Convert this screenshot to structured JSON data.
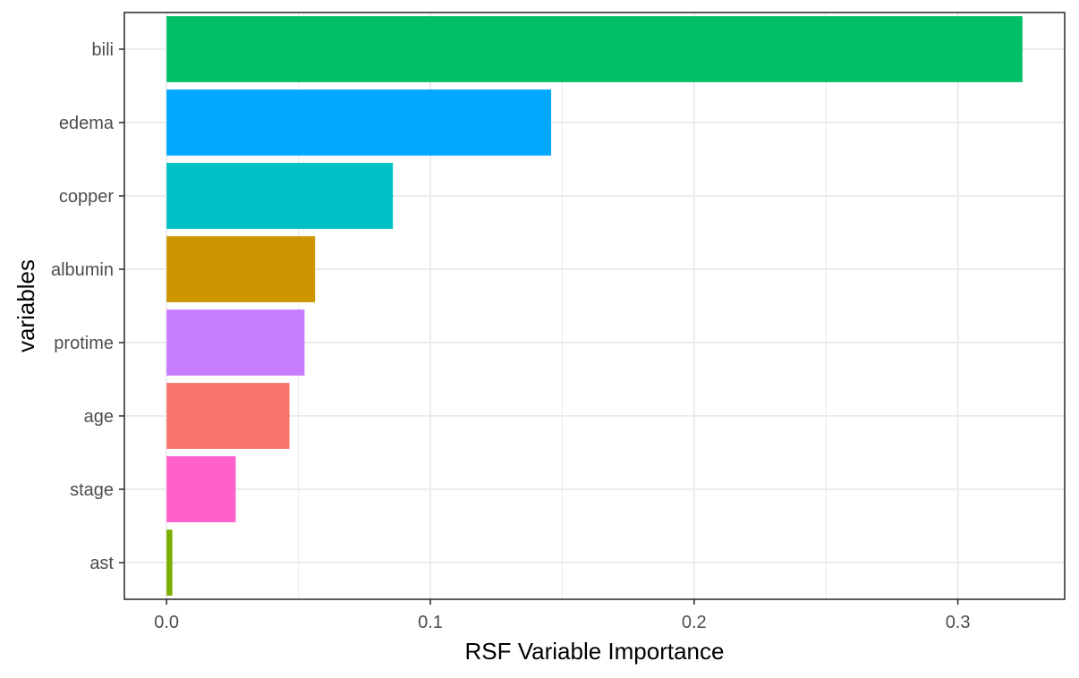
{
  "chart_data": {
    "type": "bar",
    "orientation": "horizontal",
    "xlabel": "RSF Variable Importance",
    "ylabel": "variables",
    "xlim": [
      -0.016,
      0.3405
    ],
    "x_ticks": [
      "0.0",
      "0.1",
      "0.2",
      "0.3"
    ],
    "x_tick_values": [
      0.0,
      0.1,
      0.2,
      0.3
    ],
    "grid": true,
    "legend": "none",
    "categories": [
      "bili",
      "edema",
      "copper",
      "albumin",
      "protime",
      "age",
      "stage",
      "ast"
    ],
    "values": [
      0.3245,
      0.1458,
      0.0858,
      0.0563,
      0.0523,
      0.0466,
      0.0262,
      0.0022
    ],
    "colors": [
      "#00BF67",
      "#00A9FF",
      "#00C0C5",
      "#CD9600",
      "#C77CFF",
      "#F8766D",
      "#FF61CC",
      "#7CAE00"
    ]
  }
}
